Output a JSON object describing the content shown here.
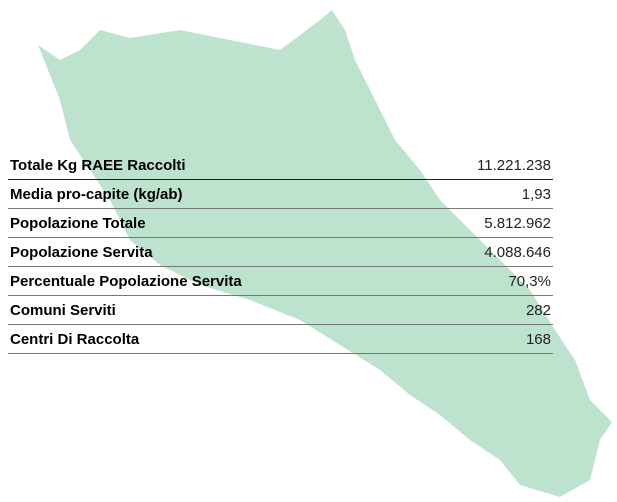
{
  "table": {
    "rows": [
      [
        "Totale Kg RAEE Raccolti",
        "11.221.238"
      ],
      [
        "Media pro-capite (kg/ab)",
        "1,93"
      ],
      [
        "Popolazione Totale",
        "5.812.962"
      ],
      [
        "Popolazione Servita",
        "4.088.646"
      ],
      [
        "Percentuale Popolazione Servita",
        "70,3%"
      ],
      [
        "Comuni Serviti",
        "282"
      ],
      [
        "Centri Di Raccolta",
        "168"
      ]
    ]
  }
}
